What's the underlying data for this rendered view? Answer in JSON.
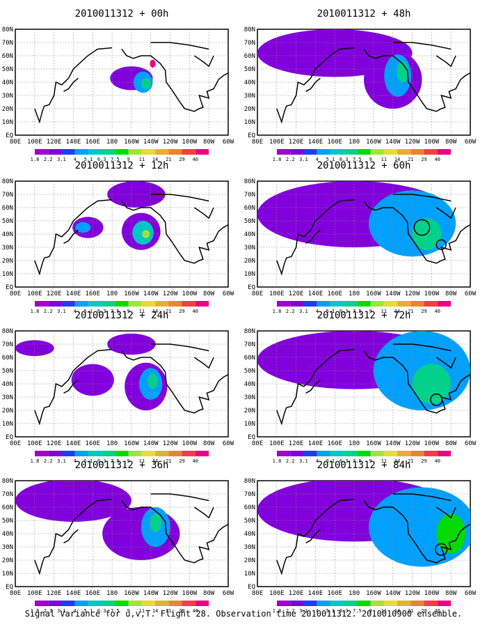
{
  "caption": "Signal Variance for u,v,T. Flight 28. Observation time 2010011312. 2010010900 ensemble.",
  "colorbar": {
    "labels": [
      "1.8",
      "2.2",
      "3.1",
      "4",
      "5.1",
      "6.3",
      "7.5",
      "9",
      "11",
      "14",
      "21",
      "29",
      "40"
    ],
    "colors": [
      "#a000c8",
      "#8200dc",
      "#1e3cff",
      "#00a0ff",
      "#00c8c8",
      "#00d28c",
      "#00dc00",
      "#a0e632",
      "#e6dc32",
      "#e6af2d",
      "#f08228",
      "#fa3c3c",
      "#f00082"
    ]
  },
  "axes": {
    "x_ticks": [
      "80E",
      "100E",
      "120E",
      "140E",
      "160E",
      "180",
      "160W",
      "140W",
      "120W",
      "100W",
      "80W",
      "60W"
    ],
    "y_ticks": [
      "EQ",
      "10N",
      "20N",
      "30N",
      "40N",
      "50N",
      "60N",
      "70N",
      "80N"
    ]
  },
  "chart_data": [
    {
      "type": "heatmap",
      "title": "2010011312 + 00h",
      "lead_hours": 0,
      "xlim": [
        "80E",
        "60W"
      ],
      "ylim": [
        "EQ",
        "80N"
      ],
      "regions": [
        {
          "lon": -160,
          "lat": 43,
          "rlon": 22,
          "rlat": 9,
          "level": 1
        },
        {
          "lon": -148,
          "lat": 40,
          "rlon": 10,
          "rlat": 8,
          "level": 3
        },
        {
          "lon": -145,
          "lat": 39,
          "rlon": 5,
          "rlat": 4,
          "level": 5
        },
        {
          "lon": -138,
          "lat": 54,
          "rlon": 3,
          "rlat": 3,
          "level": 12
        }
      ]
    },
    {
      "type": "heatmap",
      "title": "2010011312 + 12h",
      "lead_hours": 12,
      "xlim": [
        "80E",
        "60W"
      ],
      "ylim": [
        "EQ",
        "80N"
      ],
      "regions": [
        {
          "lon": -155,
          "lat": 70,
          "rlon": 30,
          "rlat": 10,
          "level": 1
        },
        {
          "lon": 155,
          "lat": 45,
          "rlon": 16,
          "rlat": 8,
          "level": 1
        },
        {
          "lon": 150,
          "lat": 45,
          "rlon": 8,
          "rlat": 4,
          "level": 3
        },
        {
          "lon": -150,
          "lat": 42,
          "rlon": 20,
          "rlat": 14,
          "level": 1
        },
        {
          "lon": -148,
          "lat": 41,
          "rlon": 11,
          "rlat": 9,
          "level": 4
        },
        {
          "lon": -145,
          "lat": 40,
          "rlon": 4,
          "rlat": 3,
          "level": 7
        }
      ]
    },
    {
      "type": "heatmap",
      "title": "2010011312 + 24h",
      "lead_hours": 24,
      "xlim": [
        "80E",
        "60W"
      ],
      "ylim": [
        "EQ",
        "80N"
      ],
      "regions": [
        {
          "lon": 100,
          "lat": 67,
          "rlon": 20,
          "rlat": 6,
          "level": 1
        },
        {
          "lon": -160,
          "lat": 70,
          "rlon": 25,
          "rlat": 8,
          "level": 1
        },
        {
          "lon": 160,
          "lat": 43,
          "rlon": 22,
          "rlat": 12,
          "level": 1
        },
        {
          "lon": -145,
          "lat": 38,
          "rlon": 22,
          "rlat": 18,
          "level": 1
        },
        {
          "lon": -140,
          "lat": 40,
          "rlon": 12,
          "rlat": 12,
          "level": 3
        },
        {
          "lon": -138,
          "lat": 42,
          "rlon": 5,
          "rlat": 6,
          "level": 5
        }
      ]
    },
    {
      "type": "heatmap",
      "title": "2010011312 + 36h",
      "lead_hours": 36,
      "xlim": [
        "80E",
        "60W"
      ],
      "ylim": [
        "EQ",
        "80N"
      ],
      "regions": [
        {
          "lon": 140,
          "lat": 65,
          "rlon": 60,
          "rlat": 16,
          "level": 1
        },
        {
          "lon": -150,
          "lat": 40,
          "rlon": 40,
          "rlat": 20,
          "level": 1
        },
        {
          "lon": -135,
          "lat": 45,
          "rlon": 15,
          "rlat": 15,
          "level": 3
        },
        {
          "lon": -135,
          "lat": 48,
          "rlon": 6,
          "rlat": 7,
          "level": 5
        }
      ]
    },
    {
      "type": "heatmap",
      "title": "2010011312 + 48h",
      "lead_hours": 48,
      "xlim": [
        "80E",
        "60W"
      ],
      "ylim": [
        "EQ",
        "80N"
      ],
      "regions": [
        {
          "lon": 160,
          "lat": 62,
          "rlon": 80,
          "rlat": 18,
          "level": 1
        },
        {
          "lon": -140,
          "lat": 42,
          "rlon": 30,
          "rlat": 22,
          "level": 1
        },
        {
          "lon": -135,
          "lat": 45,
          "rlon": 14,
          "rlat": 16,
          "level": 3
        },
        {
          "lon": -130,
          "lat": 48,
          "rlon": 6,
          "rlat": 8,
          "level": 5
        }
      ]
    },
    {
      "type": "heatmap",
      "title": "2010011312 + 60h",
      "lead_hours": 60,
      "xlim": [
        "80E",
        "60W"
      ],
      "ylim": [
        "EQ",
        "80N"
      ],
      "regions": [
        {
          "lon": 180,
          "lat": 55,
          "rlon": 100,
          "rlat": 25,
          "level": 1
        },
        {
          "lon": -120,
          "lat": 48,
          "rlon": 45,
          "rlat": 25,
          "level": 3
        },
        {
          "lon": -105,
          "lat": 40,
          "rlon": 15,
          "rlat": 12,
          "level": 5
        }
      ],
      "circles": [
        {
          "lon": -110,
          "lat": 45,
          "r": 8
        },
        {
          "lon": -90,
          "lat": 32,
          "r": 5
        }
      ]
    },
    {
      "type": "heatmap",
      "title": "2010011312 + 72h",
      "lead_hours": 72,
      "xlim": [
        "80E",
        "60W"
      ],
      "ylim": [
        "EQ",
        "80N"
      ],
      "regions": [
        {
          "lon": 180,
          "lat": 58,
          "rlon": 100,
          "rlat": 22,
          "level": 1
        },
        {
          "lon": -110,
          "lat": 50,
          "rlon": 50,
          "rlat": 30,
          "level": 3
        },
        {
          "lon": -100,
          "lat": 40,
          "rlon": 20,
          "rlat": 15,
          "level": 5
        }
      ],
      "circles": [
        {
          "lon": -95,
          "lat": 28,
          "r": 6
        }
      ]
    },
    {
      "type": "heatmap",
      "title": "2010011312 + 84h",
      "lead_hours": 84,
      "xlim": [
        "80E",
        "60W"
      ],
      "ylim": [
        "EQ",
        "80N"
      ],
      "regions": [
        {
          "lon": 180,
          "lat": 58,
          "rlon": 100,
          "rlat": 24,
          "level": 1
        },
        {
          "lon": -110,
          "lat": 45,
          "rlon": 55,
          "rlat": 30,
          "level": 3
        },
        {
          "lon": -80,
          "lat": 40,
          "rlon": 15,
          "rlat": 15,
          "level": 6
        }
      ],
      "circles": [
        {
          "lon": -90,
          "lat": 28,
          "r": 6
        }
      ]
    }
  ]
}
